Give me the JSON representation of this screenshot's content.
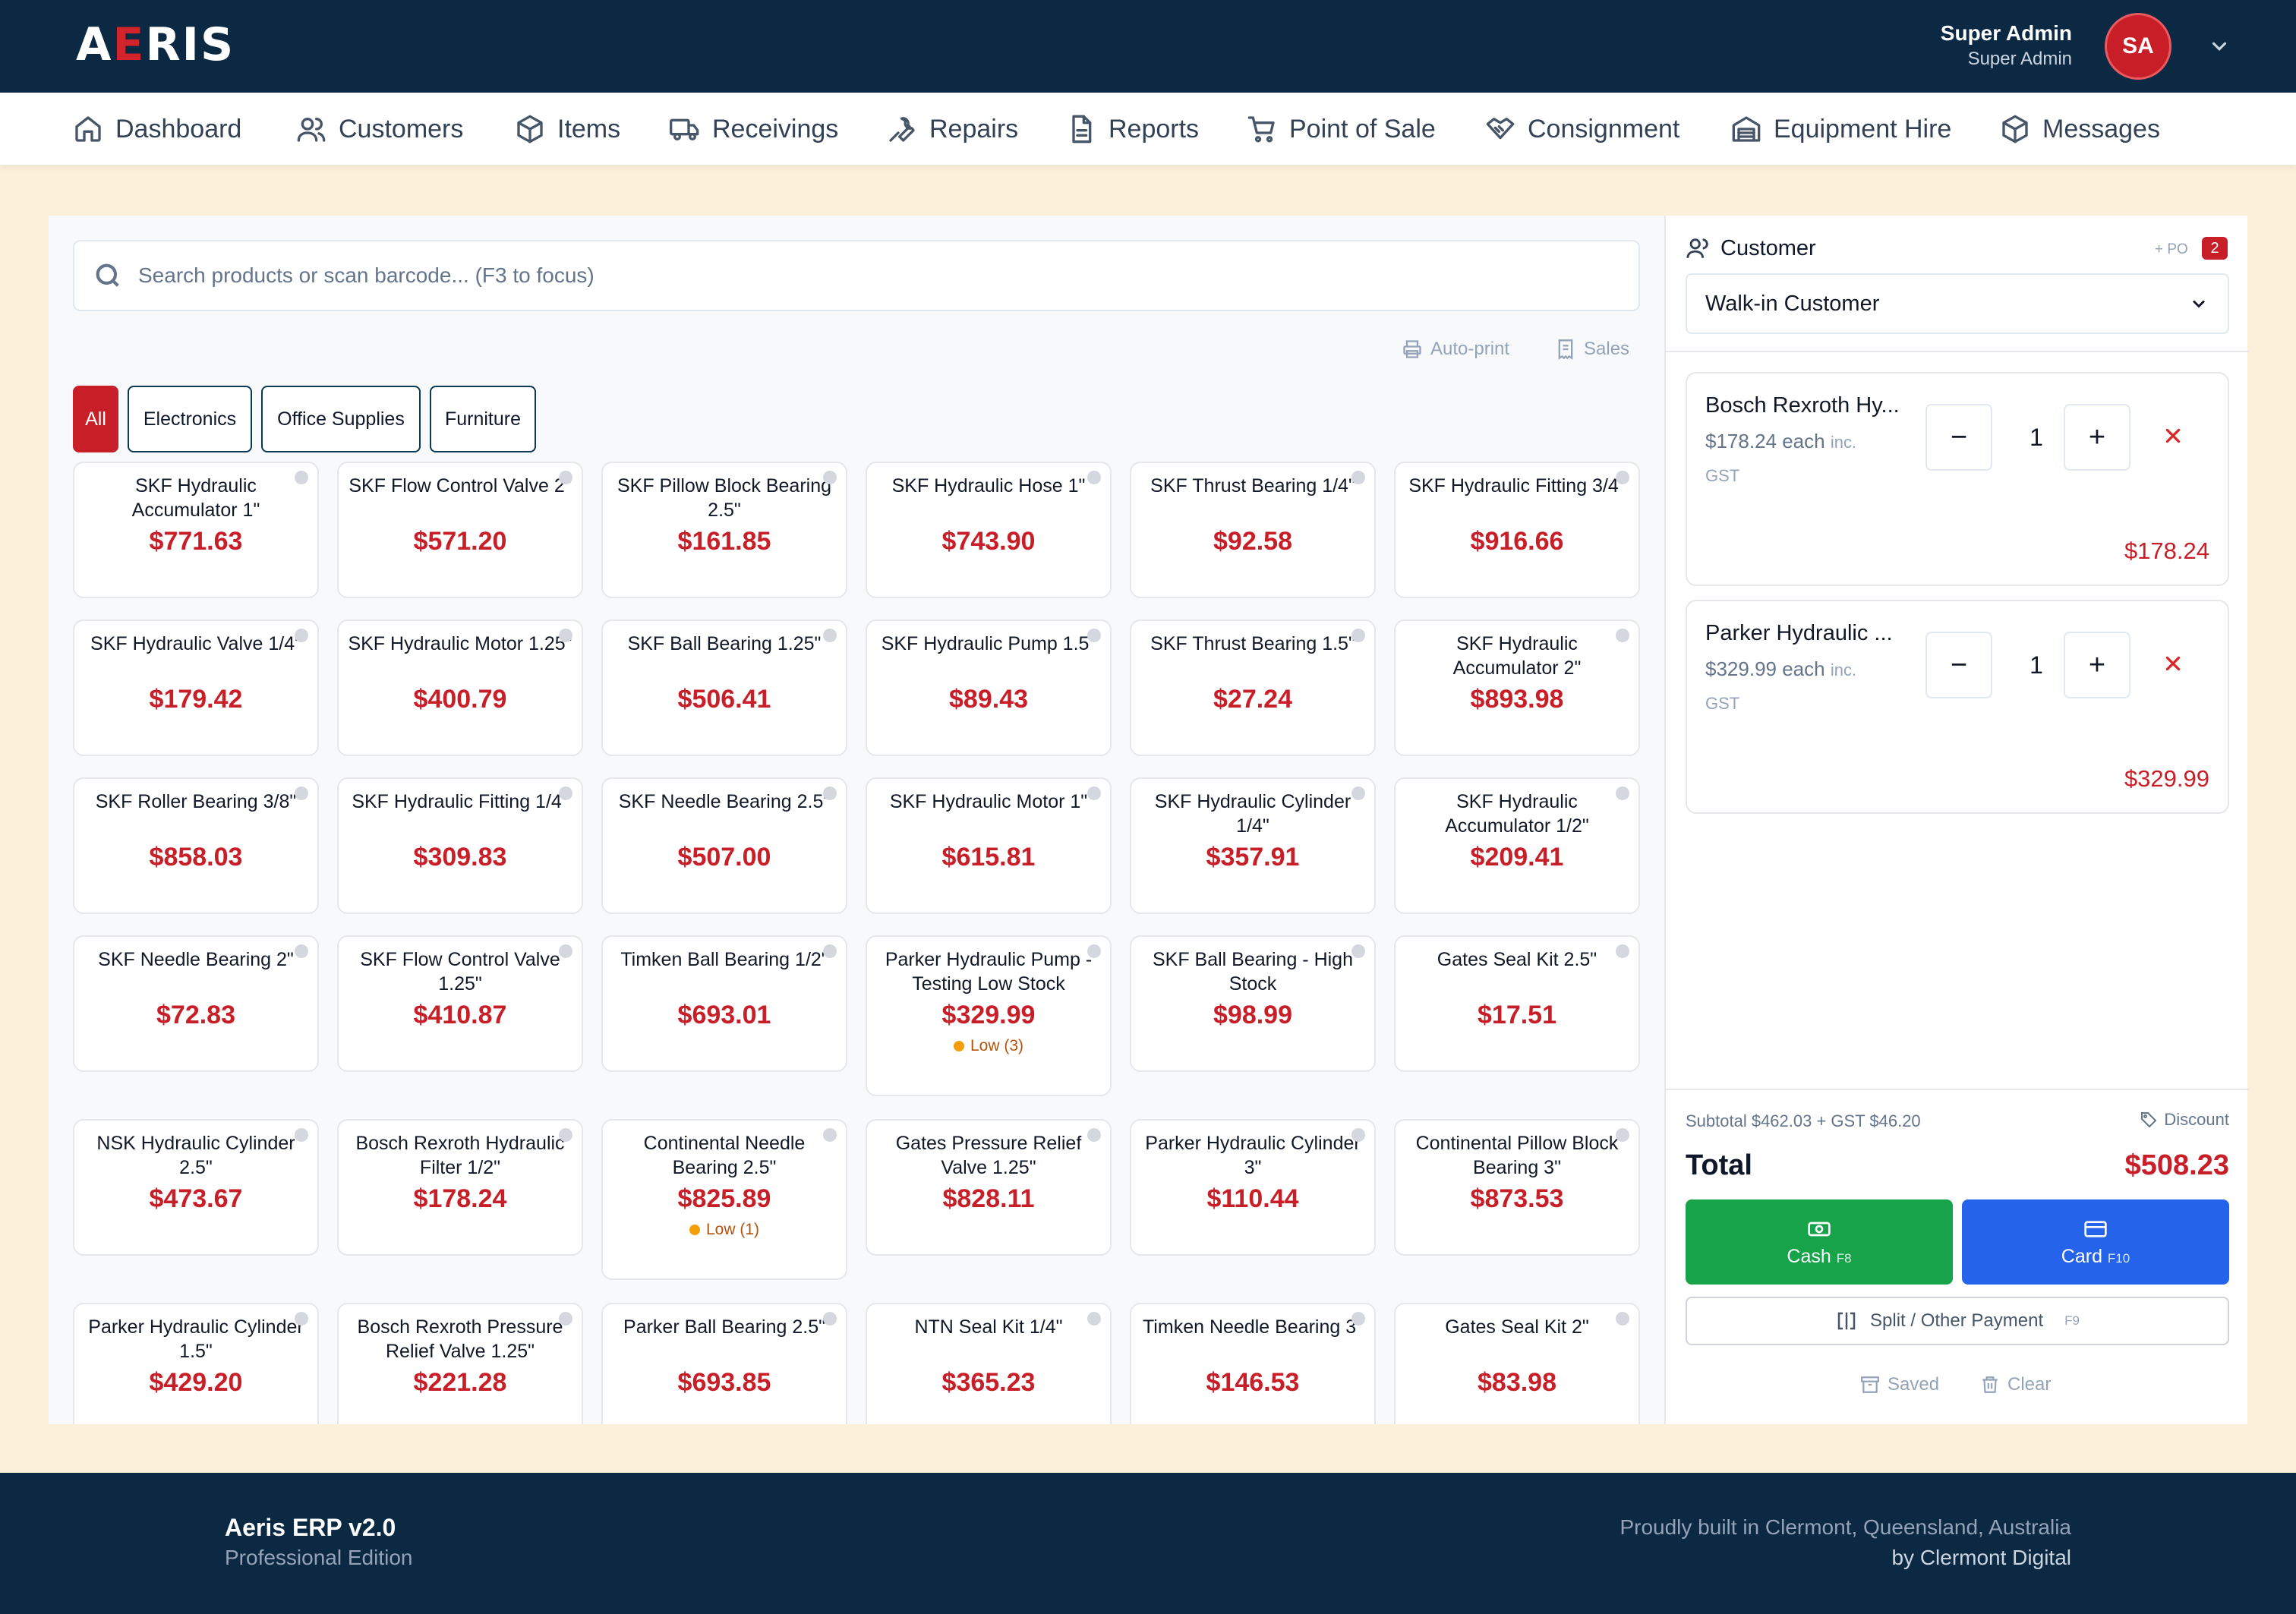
{
  "app": {
    "logo": {
      "part1": "A",
      "accent": "E",
      "part2": "RIS"
    }
  },
  "user": {
    "name": "Super Admin",
    "role": "Super Admin",
    "initials": "SA"
  },
  "nav": [
    {
      "label": "Dashboard",
      "icon": "home-icon"
    },
    {
      "label": "Customers",
      "icon": "users-icon"
    },
    {
      "label": "Items",
      "icon": "box-icon"
    },
    {
      "label": "Receivings",
      "icon": "truck-icon"
    },
    {
      "label": "Repairs",
      "icon": "wrench-icon"
    },
    {
      "label": "Reports",
      "icon": "document-icon"
    },
    {
      "label": "Point of Sale",
      "icon": "cart-icon"
    },
    {
      "label": "Consignment",
      "icon": "handshake-icon"
    },
    {
      "label": "Equipment Hire",
      "icon": "warehouse-icon"
    },
    {
      "label": "Messages",
      "icon": "box-icon"
    }
  ],
  "search": {
    "placeholder": "Search products or scan barcode... (F3 to focus)"
  },
  "tools": {
    "autoprint": "Auto-print",
    "sales": "Sales"
  },
  "categories": [
    "All",
    "Electronics",
    "Office Supplies",
    "Furniture"
  ],
  "products": [
    {
      "name": "SKF Hydraulic Accumulator 1\"",
      "price": "$771.63"
    },
    {
      "name": "SKF Flow Control Valve 2\"",
      "price": "$571.20"
    },
    {
      "name": "SKF Pillow Block Bearing 2.5\"",
      "price": "$161.85"
    },
    {
      "name": "SKF Hydraulic Hose 1\"",
      "price": "$743.90"
    },
    {
      "name": "SKF Thrust Bearing 1/4\"",
      "price": "$92.58"
    },
    {
      "name": "SKF Hydraulic Fitting 3/4\"",
      "price": "$916.66"
    },
    {
      "name": "SKF Hydraulic Valve 1/4\"",
      "price": "$179.42"
    },
    {
      "name": "SKF Hydraulic Motor 1.25\"",
      "price": "$400.79"
    },
    {
      "name": "SKF Ball Bearing 1.25\"",
      "price": "$506.41"
    },
    {
      "name": "SKF Hydraulic Pump 1.5\"",
      "price": "$89.43"
    },
    {
      "name": "SKF Thrust Bearing 1.5\"",
      "price": "$27.24"
    },
    {
      "name": "SKF Hydraulic Accumulator 2\"",
      "price": "$893.98"
    },
    {
      "name": "SKF Roller Bearing 3/8\"",
      "price": "$858.03"
    },
    {
      "name": "SKF Hydraulic Fitting 1/4\"",
      "price": "$309.83"
    },
    {
      "name": "SKF Needle Bearing 2.5\"",
      "price": "$507.00"
    },
    {
      "name": "SKF Hydraulic Motor 1\"",
      "price": "$615.81"
    },
    {
      "name": "SKF Hydraulic Cylinder 1/4\"",
      "price": "$357.91"
    },
    {
      "name": "SKF Hydraulic Accumulator 1/2\"",
      "price": "$209.41"
    },
    {
      "name": "SKF Needle Bearing 2\"",
      "price": "$72.83"
    },
    {
      "name": "SKF Flow Control Valve 1.25\"",
      "price": "$410.87"
    },
    {
      "name": "Timken Ball Bearing 1/2\"",
      "price": "$693.01"
    },
    {
      "name": "Parker Hydraulic Pump - Testing Low Stock",
      "price": "$329.99",
      "stock": "Low (3)"
    },
    {
      "name": "SKF Ball Bearing - High Stock",
      "price": "$98.99"
    },
    {
      "name": "Gates Seal Kit 2.5\"",
      "price": "$17.51"
    },
    {
      "name": "NSK Hydraulic Cylinder 2.5\"",
      "price": "$473.67"
    },
    {
      "name": "Bosch Rexroth Hydraulic Filter 1/2\"",
      "price": "$178.24"
    },
    {
      "name": "Continental Needle Bearing 2.5\"",
      "price": "$825.89",
      "stock": "Low (1)"
    },
    {
      "name": "Gates Pressure Relief Valve 1.25\"",
      "price": "$828.11"
    },
    {
      "name": "Parker Hydraulic Cylinder 3\"",
      "price": "$110.44"
    },
    {
      "name": "Continental Pillow Block Bearing 3\"",
      "price": "$873.53"
    },
    {
      "name": "Parker Hydraulic Cylinder 1.5\"",
      "price": "$429.20"
    },
    {
      "name": "Bosch Rexroth Pressure Relief Valve 1.25\"",
      "price": "$221.28"
    },
    {
      "name": "Parker Ball Bearing 2.5\"",
      "price": "$693.85"
    },
    {
      "name": "NTN Seal Kit 1/4\"",
      "price": "$365.23"
    },
    {
      "name": "Timken Needle Bearing 3\"",
      "price": "$146.53"
    },
    {
      "name": "Gates Seal Kit 2\"",
      "price": "$83.98"
    }
  ],
  "customer": {
    "heading": "Customer",
    "po_label": "+ PO",
    "po_count": "2",
    "selected": "Walk-in Customer"
  },
  "cart": [
    {
      "name": "Bosch Rexroth Hy...",
      "each": "$178.24 each",
      "tax_note_a": "inc.",
      "tax_note_b": "GST",
      "qty": "1",
      "total": "$178.24"
    },
    {
      "name": "Parker Hydraulic ...",
      "each": "$329.99 each",
      "tax_note_a": "inc.",
      "tax_note_b": "GST",
      "qty": "1",
      "total": "$329.99"
    }
  ],
  "summary": {
    "subtotal_line": "Subtotal $462.03 + GST $46.20",
    "discount": "Discount",
    "total_label": "Total",
    "total_value": "$508.23"
  },
  "payments": {
    "cash": {
      "label": "Cash",
      "key": "F8"
    },
    "card": {
      "label": "Card",
      "key": "F10"
    },
    "split": {
      "label": "Split / Other Payment",
      "key": "F9"
    },
    "saved": "Saved",
    "clear": "Clear"
  },
  "footer": {
    "title": "Aeris ERP v2.0",
    "edition": "Professional Edition",
    "line1": "Proudly built in Clermont, Queensland, Australia",
    "line2": "by Clermont Digital"
  },
  "colors": {
    "brand_navy": "#0b2942",
    "brand_red": "#c81e27",
    "cash_green": "#16a34a",
    "card_blue": "#2563eb",
    "background_cream": "#fdf0da"
  }
}
